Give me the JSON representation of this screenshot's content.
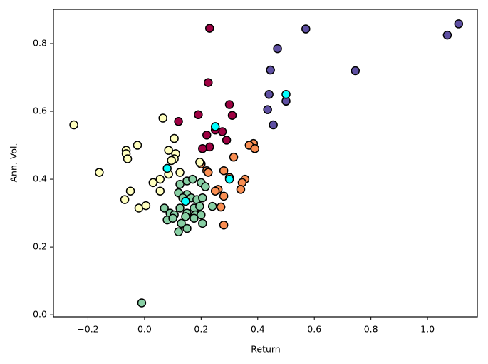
{
  "chart_data": {
    "type": "scatter",
    "xlabel": "Return",
    "ylabel": "Ann. Vol.",
    "xlim": [
      -0.322,
      1.176
    ],
    "ylim": [
      -0.006,
      0.901
    ],
    "xticks": [
      {
        "value": -0.2,
        "label": "−0.2"
      },
      {
        "value": 0,
        "label": "0.0"
      },
      0.2,
      0.4,
      0.6,
      0.8,
      {
        "value": 1,
        "label": "1.0"
      }
    ],
    "yticks": [
      {
        "value": 0,
        "label": "0.0"
      },
      0.2,
      0.4,
      0.6,
      0.8
    ],
    "series": [
      {
        "color": "#9e0142",
        "x": [
          0.23,
          0.225,
          0.3,
          0.19,
          0.31,
          0.12,
          0.29,
          0.275,
          0.25,
          0.22,
          0.23,
          0.205
        ],
        "values": [
          0.845,
          0.685,
          0.62,
          0.59,
          0.588,
          0.57,
          0.515,
          0.54,
          0.545,
          0.53,
          0.495,
          0.49
        ]
      },
      {
        "color": "#f98e52",
        "x": [
          0.385,
          0.37,
          0.39,
          0.315,
          0.2,
          0.22,
          0.225,
          0.28,
          0.3,
          0.355,
          0.345,
          0.26,
          0.25,
          0.34,
          0.28,
          0.27,
          0.28
        ],
        "values": [
          0.505,
          0.5,
          0.49,
          0.465,
          0.445,
          0.425,
          0.42,
          0.425,
          0.405,
          0.4,
          0.39,
          0.37,
          0.365,
          0.37,
          0.35,
          0.318,
          0.265
        ]
      },
      {
        "color": "#ffffbe",
        "x": [
          -0.25,
          0.065,
          -0.16,
          -0.065,
          -0.065,
          -0.025,
          -0.06,
          0.105,
          0.085,
          0.11,
          0.105,
          0.095,
          0.125,
          0.085,
          0.055,
          0.03,
          0.195,
          -0.07,
          -0.05,
          0.055,
          -0.02,
          0.005
        ],
        "values": [
          0.56,
          0.58,
          0.42,
          0.485,
          0.475,
          0.5,
          0.46,
          0.52,
          0.485,
          0.475,
          0.46,
          0.455,
          0.42,
          0.415,
          0.4,
          0.39,
          0.45,
          0.34,
          0.365,
          0.365,
          0.315,
          0.322
        ]
      },
      {
        "color": "#88cfa4",
        "x": [
          -0.01,
          0.125,
          0.15,
          0.17,
          0.2,
          0.215,
          0.12,
          0.15,
          0.165,
          0.185,
          0.205,
          0.135,
          0.24,
          0.07,
          0.125,
          0.175,
          0.195,
          0.09,
          0.105,
          0.15,
          0.18,
          0.2,
          0.08,
          0.1,
          0.145,
          0.175,
          0.13,
          0.205,
          0.15,
          0.12
        ],
        "values": [
          0.035,
          0.385,
          0.395,
          0.4,
          0.39,
          0.378,
          0.36,
          0.355,
          0.345,
          0.34,
          0.345,
          0.345,
          0.32,
          0.315,
          0.315,
          0.315,
          0.32,
          0.3,
          0.295,
          0.3,
          0.295,
          0.295,
          0.28,
          0.285,
          0.29,
          0.285,
          0.27,
          0.27,
          0.255,
          0.245
        ]
      },
      {
        "color": "#5e4fa2",
        "x": [
          1.11,
          1.07,
          0.57,
          0.47,
          0.445,
          0.745,
          0.44,
          0.5,
          0.435,
          0.455
        ],
        "values": [
          0.858,
          0.825,
          0.843,
          0.785,
          0.722,
          0.72,
          0.65,
          0.63,
          0.605,
          0.56
        ]
      },
      {
        "color": "#00ffff",
        "x": [
          0.25,
          0.5,
          0.08,
          0.3,
          0.145
        ],
        "values": [
          0.555,
          0.65,
          0.432,
          0.4,
          0.335
        ]
      }
    ]
  }
}
